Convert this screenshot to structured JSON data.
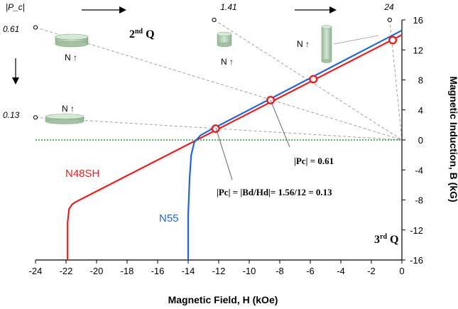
{
  "chart_data": {
    "type": "line",
    "xlabel": "Magnetic Field, H (kOe)",
    "ylabel": "Magnetic Induction, B (kG)",
    "xlim": [
      -24,
      0
    ],
    "ylim": [
      -16,
      16
    ],
    "x_ticks": [
      "-24",
      "-22",
      "-20",
      "-18",
      "-16",
      "-14",
      "-12",
      "-10",
      "-8",
      "-6",
      "-4",
      "-2",
      "0"
    ],
    "y_ticks": [
      "-16",
      "-12",
      "-8",
      "-4",
      "0",
      "4",
      "8",
      "12",
      "16"
    ],
    "grid": false,
    "series": [
      {
        "name": "N48SH",
        "color": "#ee1c1c",
        "x": [
          -21.9,
          -21.9,
          -21.8,
          -21.6,
          -21.4,
          0
        ],
        "y": [
          -16,
          -11,
          -9.2,
          -8.6,
          -8.3,
          14
        ]
      },
      {
        "name": "N55",
        "color": "#1f66dd",
        "x": [
          -14,
          -14,
          -13.9,
          -13.8,
          -13.6,
          -13.2,
          -12.5,
          -12.0,
          0
        ],
        "y": [
          -16,
          -10,
          -5,
          -2,
          -0.3,
          0.6,
          1.4,
          1.9,
          14.6
        ]
      }
    ],
    "operating_points": [
      {
        "x": -12.2,
        "y": 1.5
      },
      {
        "x": -8.6,
        "y": 5.3
      },
      {
        "x": -5.8,
        "y": 8.1
      },
      {
        "x": -0.6,
        "y": 13.3
      }
    ],
    "load_lines": [
      {
        "from": [
          -24,
          3
        ],
        "to": [
          0,
          0
        ]
      },
      {
        "from": [
          -24,
          15
        ],
        "to": [
          0,
          0
        ]
      },
      {
        "from": [
          -12.3,
          16
        ],
        "to": [
          0,
          0
        ]
      },
      {
        "from": [
          -0.8,
          16
        ],
        "to": [
          0,
          0
        ]
      }
    ],
    "top_scale": {
      "label": "|P_c|",
      "ticks": [
        "1.41",
        "24"
      ],
      "arrow": "→"
    },
    "left_scale": {
      "ticks": [
        "0.61",
        "0.13"
      ],
      "arrow": "↓"
    },
    "quadrants": {
      "second": {
        "base": "2",
        "sup": "nd",
        "tail": " Q"
      },
      "third": {
        "base": "3",
        "sup": "rd",
        "tail": " Q"
      }
    },
    "annotations": {
      "pc061": "|Pc| = 0.61",
      "pc013": "|Pc| = |Bd/Hd|= 1.56/12 = 0.13"
    },
    "magnet_label": "N ↑",
    "colors": {
      "n48sh": "#ee1c1c",
      "n55": "#1f66dd",
      "zero_line": "#2a9a3a",
      "load_line": "#a0a0a0",
      "magnet": "#b9d1b9"
    }
  }
}
